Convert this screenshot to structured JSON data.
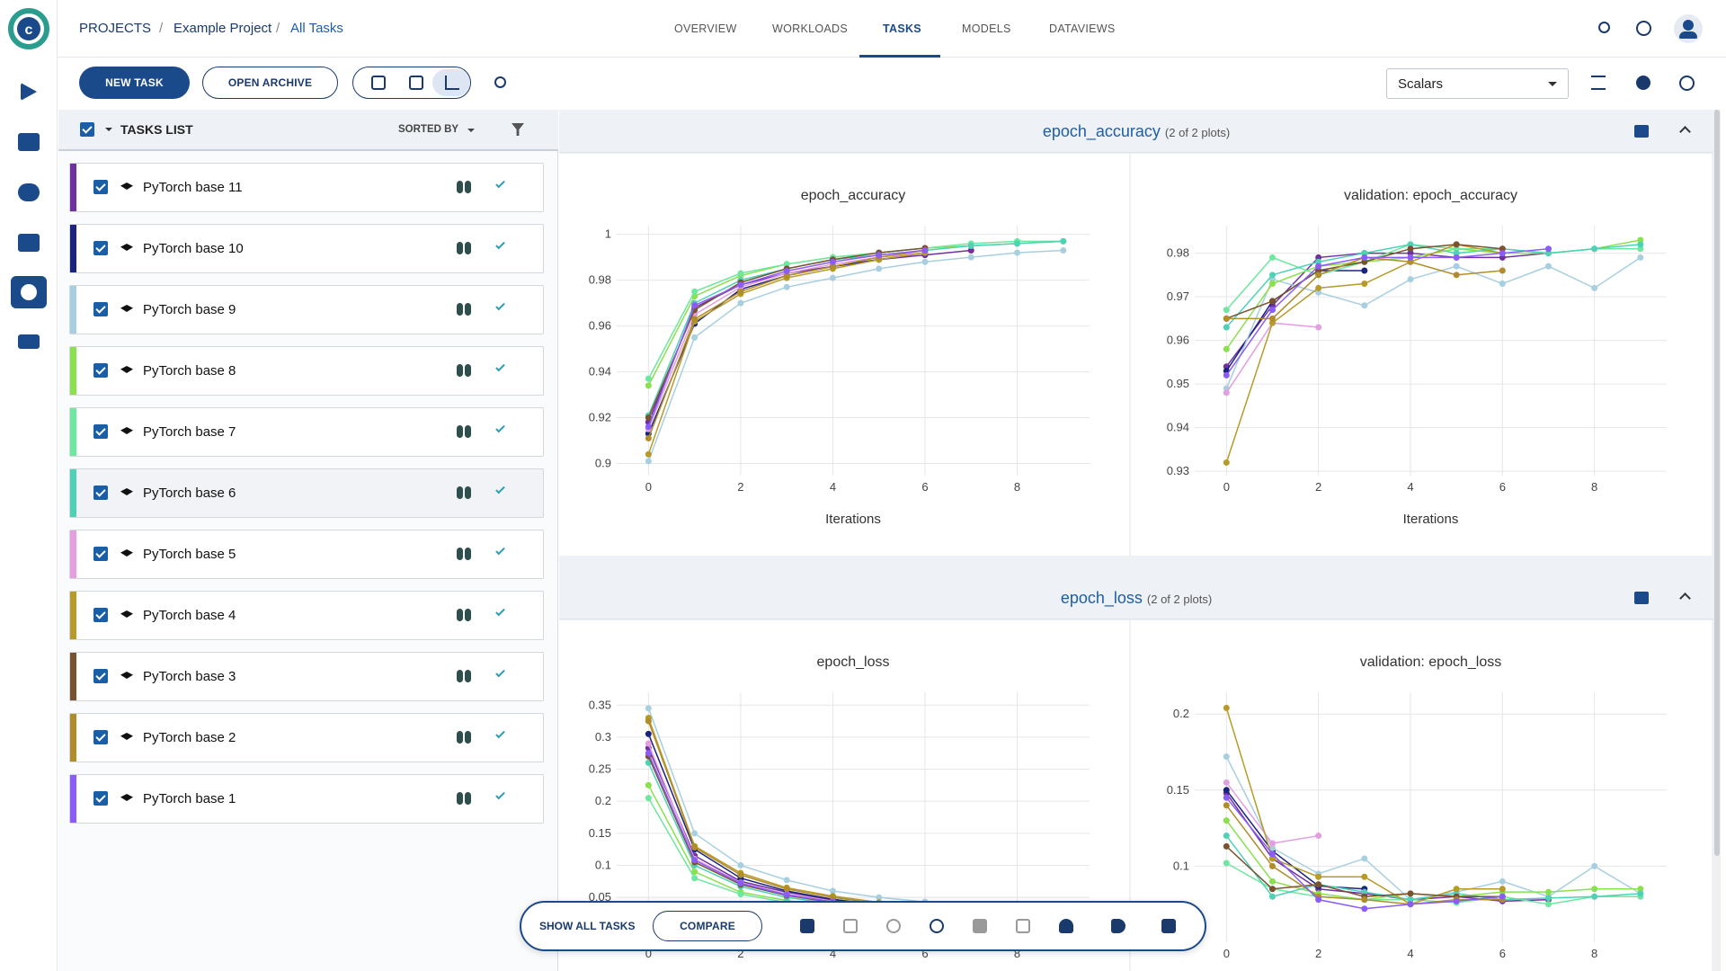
{
  "header": {
    "breadcrumb": [
      "PROJECTS",
      "Example Project",
      "All Tasks"
    ],
    "tabs": [
      "OVERVIEW",
      "WORKLOADS",
      "TASKS",
      "MODELS",
      "DATAVIEWS"
    ]
  },
  "toolbar": {
    "new_task": "NEW TASK",
    "open_archive": "OPEN ARCHIVE",
    "view": "Scalars"
  },
  "tasks_list": {
    "title": "TASKS LIST",
    "sorted_by": "SORTED BY",
    "tasks": [
      {
        "name": "PyTorch base 11",
        "color": "#7030a0"
      },
      {
        "name": "PyTorch base 10",
        "color": "#1a237e"
      },
      {
        "name": "PyTorch base 9",
        "color": "#a8cfe0"
      },
      {
        "name": "PyTorch base 8",
        "color": "#8be04e"
      },
      {
        "name": "PyTorch base 7",
        "color": "#6ee7a0"
      },
      {
        "name": "PyTorch base 6",
        "color": "#4fd1b5"
      },
      {
        "name": "PyTorch base 5",
        "color": "#e39fe0"
      },
      {
        "name": "PyTorch base 4",
        "color": "#b89a2a"
      },
      {
        "name": "PyTorch base 3",
        "color": "#7a5230"
      },
      {
        "name": "PyTorch base 2",
        "color": "#b08d2a"
      },
      {
        "name": "PyTorch base 1",
        "color": "#8b5cf6"
      }
    ]
  },
  "sections": [
    {
      "title": "epoch_accuracy",
      "count": "(2 of 2 plots)"
    },
    {
      "title": "epoch_loss",
      "count": "(2 of 2 plots)"
    }
  ],
  "chart_data": [
    {
      "type": "line",
      "title": "epoch_accuracy",
      "xlabel": "Iterations",
      "grid": true,
      "x": [
        0,
        1,
        2,
        3,
        4,
        5,
        6,
        7,
        8,
        9
      ],
      "xlim": [
        -0.69,
        9.57
      ],
      "xticks": [
        0,
        2,
        4,
        6,
        8
      ],
      "ylim": [
        0.8947,
        1.0038
      ],
      "yticks": [
        0.9,
        0.92,
        0.94,
        0.96,
        0.98,
        1
      ],
      "series": [
        {
          "values": [
            0.918,
            0.968,
            0.978,
            0.983,
            0.986,
            0.989,
            0.991,
            0.993,
            null,
            null
          ]
        },
        {
          "values": [
            0.913,
            0.961,
            0.976,
            0.982,
            0.986,
            0.989,
            0.992,
            null,
            null,
            null
          ]
        },
        {
          "values": [
            0.901,
            0.955,
            0.97,
            0.977,
            0.981,
            0.985,
            0.988,
            0.99,
            0.992,
            0.993
          ]
        },
        {
          "values": [
            0.934,
            0.973,
            0.982,
            0.987,
            0.99,
            0.992,
            0.994,
            0.995,
            0.996,
            0.997
          ]
        },
        {
          "values": [
            0.937,
            0.975,
            0.983,
            0.987,
            0.99,
            0.992,
            0.994,
            0.996,
            0.997,
            0.997
          ]
        },
        {
          "values": [
            0.921,
            0.97,
            0.98,
            0.985,
            0.989,
            0.991,
            0.993,
            0.995,
            0.996,
            0.997
          ]
        },
        {
          "values": [
            0.915,
            0.965,
            0.977,
            0.983,
            0.987,
            0.99,
            0.992,
            null,
            null,
            null
          ]
        },
        {
          "values": [
            0.904,
            0.962,
            0.974,
            0.981,
            0.985,
            0.989,
            0.992,
            null,
            null,
            null
          ]
        },
        {
          "values": [
            0.92,
            0.967,
            0.979,
            0.985,
            0.989,
            0.992,
            0.994,
            null,
            null,
            null
          ]
        },
        {
          "values": [
            0.911,
            0.963,
            0.975,
            0.982,
            0.986,
            0.99,
            0.993,
            null,
            null,
            null
          ]
        },
        {
          "values": [
            0.916,
            0.969,
            0.978,
            0.984,
            0.988,
            0.991,
            0.993,
            null,
            null,
            null
          ]
        }
      ]
    },
    {
      "type": "line",
      "title": "validation: epoch_accuracy",
      "xlabel": "Iterations",
      "grid": true,
      "x": [
        0,
        1,
        2,
        3,
        4,
        5,
        6,
        7,
        8,
        9
      ],
      "xlim": [
        -0.69,
        9.57
      ],
      "xticks": [
        0,
        2,
        4,
        6,
        8
      ],
      "ylim": [
        0.929,
        0.9863
      ],
      "yticks": [
        0.93,
        0.94,
        0.95,
        0.96,
        0.97,
        0.98
      ],
      "series": [
        {
          "values": [
            0.954,
            0.968,
            0.979,
            0.98,
            0.98,
            0.979,
            0.979,
            0.98,
            null,
            null
          ]
        },
        {
          "values": [
            0.953,
            0.969,
            0.976,
            0.976,
            null,
            null,
            null,
            null,
            null,
            null
          ]
        },
        {
          "values": [
            0.949,
            0.974,
            0.971,
            0.968,
            0.974,
            0.977,
            0.973,
            0.977,
            0.972,
            0.979
          ]
        },
        {
          "values": [
            0.958,
            0.973,
            0.977,
            0.978,
            0.979,
            0.981,
            0.98,
            0.98,
            0.981,
            0.983
          ]
        },
        {
          "values": [
            0.967,
            0.979,
            0.975,
            0.978,
            0.982,
            0.981,
            0.981,
            0.98,
            0.981,
            0.981
          ]
        },
        {
          "values": [
            0.963,
            0.975,
            0.978,
            0.98,
            0.982,
            0.98,
            0.981,
            0.98,
            0.981,
            0.982
          ]
        },
        {
          "values": [
            0.948,
            0.964,
            0.963,
            null,
            null,
            null,
            null,
            null,
            null,
            null
          ]
        },
        {
          "values": [
            0.932,
            0.964,
            0.972,
            0.973,
            0.978,
            0.982,
            0.98,
            null,
            null,
            null
          ]
        },
        {
          "values": [
            0.965,
            0.969,
            0.976,
            0.978,
            0.981,
            0.982,
            0.981,
            null,
            null,
            null
          ]
        },
        {
          "values": [
            0.965,
            0.965,
            0.975,
            0.979,
            0.978,
            0.975,
            0.976,
            null,
            null,
            null
          ]
        },
        {
          "values": [
            0.952,
            0.967,
            0.977,
            0.979,
            0.979,
            0.979,
            0.98,
            0.981,
            null,
            null
          ]
        }
      ]
    },
    {
      "type": "line",
      "title": "epoch_loss",
      "grid": true,
      "x": [
        0,
        1,
        2,
        3,
        4,
        5,
        6,
        7,
        8,
        9
      ],
      "xlim": [
        -0.69,
        9.57
      ],
      "xticks": [
        0,
        2,
        4,
        6,
        8
      ],
      "ylim": [
        -0.02,
        0.37
      ],
      "yticks": [
        0.05,
        0.1,
        0.15,
        0.2,
        0.25,
        0.3,
        0.35
      ],
      "series": [
        {
          "values": [
            0.283,
            0.115,
            0.075,
            0.058,
            0.046,
            0.038,
            0.031,
            0.026,
            null,
            null
          ]
        },
        {
          "values": [
            0.305,
            0.125,
            0.08,
            0.06,
            0.047,
            0.038,
            0.031,
            null,
            null,
            null
          ]
        },
        {
          "values": [
            0.345,
            0.15,
            0.1,
            0.077,
            0.06,
            0.05,
            0.043,
            0.037,
            0.032,
            0.03
          ]
        },
        {
          "values": [
            0.225,
            0.09,
            0.058,
            0.045,
            0.036,
            0.03,
            0.025,
            0.021,
            0.018,
            0.016
          ]
        },
        {
          "values": [
            0.205,
            0.08,
            0.055,
            0.042,
            0.034,
            0.028,
            0.023,
            0.019,
            0.016,
            0.015
          ]
        },
        {
          "values": [
            0.26,
            0.1,
            0.067,
            0.05,
            0.04,
            0.033,
            0.027,
            0.023,
            0.02,
            0.018
          ]
        },
        {
          "values": [
            0.29,
            0.11,
            0.073,
            0.055,
            0.044,
            0.036,
            0.03,
            null,
            null,
            null
          ]
        },
        {
          "values": [
            0.33,
            0.13,
            0.088,
            0.065,
            0.052,
            0.042,
            0.035,
            null,
            null,
            null
          ]
        },
        {
          "values": [
            0.27,
            0.105,
            0.07,
            0.053,
            0.042,
            0.034,
            0.028,
            null,
            null,
            null
          ]
        },
        {
          "values": [
            0.325,
            0.128,
            0.085,
            0.063,
            0.05,
            0.04,
            0.033,
            null,
            null,
            null
          ]
        },
        {
          "values": [
            0.275,
            0.108,
            0.072,
            0.054,
            0.043,
            0.035,
            0.029,
            null,
            null,
            null
          ]
        }
      ]
    },
    {
      "type": "line",
      "title": "validation: epoch_loss",
      "grid": true,
      "x": [
        0,
        1,
        2,
        3,
        4,
        5,
        6,
        7,
        8,
        9
      ],
      "xlim": [
        -0.69,
        9.57
      ],
      "xticks": [
        0,
        2,
        4,
        6,
        8
      ],
      "ylim": [
        0.05,
        0.2143
      ],
      "yticks": [
        0.1,
        0.15,
        0.2
      ],
      "series": [
        {
          "values": [
            0.148,
            0.105,
            0.085,
            0.082,
            0.078,
            0.08,
            0.077,
            0.078,
            null,
            null
          ]
        },
        {
          "values": [
            0.15,
            0.11,
            0.087,
            0.085,
            null,
            null,
            null,
            null,
            null,
            null
          ]
        },
        {
          "values": [
            0.172,
            0.112,
            0.095,
            0.105,
            0.078,
            0.083,
            0.09,
            0.08,
            0.1,
            0.082
          ]
        },
        {
          "values": [
            0.13,
            0.09,
            0.082,
            0.078,
            0.082,
            0.08,
            0.083,
            0.083,
            0.085,
            0.085
          ]
        },
        {
          "values": [
            0.102,
            0.085,
            0.08,
            0.078,
            0.078,
            0.076,
            0.08,
            0.075,
            0.08,
            0.08
          ]
        },
        {
          "values": [
            0.12,
            0.08,
            0.088,
            0.083,
            0.078,
            0.082,
            0.078,
            0.079,
            0.08,
            0.082
          ]
        },
        {
          "values": [
            0.155,
            0.115,
            0.12,
            null,
            null,
            null,
            null,
            null,
            null,
            null
          ]
        },
        {
          "values": [
            0.204,
            0.105,
            0.093,
            0.093,
            0.075,
            0.085,
            0.085,
            null,
            null,
            null
          ]
        },
        {
          "values": [
            0.113,
            0.085,
            0.088,
            0.08,
            0.082,
            0.08,
            0.08,
            null,
            null,
            null
          ]
        },
        {
          "values": [
            0.14,
            0.1,
            0.08,
            0.078,
            0.075,
            0.078,
            0.078,
            null,
            null,
            null
          ]
        },
        {
          "values": [
            0.145,
            0.108,
            0.078,
            0.072,
            0.075,
            0.077,
            0.08,
            null,
            null,
            null
          ]
        }
      ]
    }
  ],
  "bottom_bar": {
    "show_all": "SHOW ALL TASKS",
    "compare": "COMPARE"
  }
}
